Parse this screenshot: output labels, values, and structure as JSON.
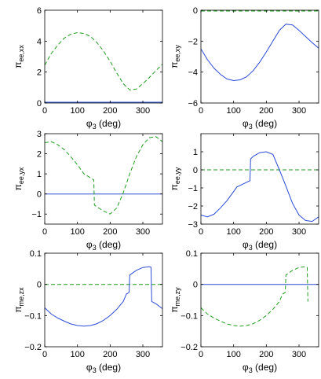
{
  "chart_data": [
    {
      "type": "line",
      "ylabel_main": "π",
      "ylabel_sub": "ee,xx",
      "xlabel_main": "φ",
      "xlabel_sub": "3",
      "xlabel_unit": " (deg)",
      "xlim": [
        0,
        360
      ],
      "ylim": [
        0,
        6
      ],
      "xticks": [
        0,
        100,
        200,
        300
      ],
      "yticks": [
        0,
        2,
        4,
        6
      ],
      "series": [
        {
          "style": "solid",
          "color": "#2b4bd6",
          "x": [
            0,
            360
          ],
          "y": [
            0.05,
            0.05
          ]
        },
        {
          "style": "dashed",
          "color": "#1f9e1f",
          "x": [
            0,
            20,
            40,
            60,
            80,
            100,
            120,
            140,
            160,
            180,
            200,
            220,
            240,
            260,
            280,
            300,
            320,
            340,
            360
          ],
          "y": [
            2.45,
            3.2,
            3.75,
            4.2,
            4.45,
            4.55,
            4.5,
            4.3,
            3.9,
            3.35,
            2.7,
            1.95,
            1.25,
            0.85,
            0.9,
            1.25,
            1.65,
            2.1,
            2.5
          ]
        }
      ]
    },
    {
      "type": "line",
      "ylabel_main": "π",
      "ylabel_sub": "ee,xy",
      "xlabel_main": "φ",
      "xlabel_sub": "3",
      "xlabel_unit": " (deg)",
      "xlim": [
        0,
        360
      ],
      "ylim": [
        -6,
        0
      ],
      "xticks": [
        0,
        100,
        200,
        300
      ],
      "yticks": [
        -6,
        -4,
        -2,
        0
      ],
      "series": [
        {
          "style": "dashed",
          "color": "#1f9e1f",
          "x": [
            0,
            360
          ],
          "y": [
            -0.05,
            -0.05
          ]
        },
        {
          "style": "solid",
          "color": "#2b4bd6",
          "x": [
            0,
            20,
            40,
            60,
            80,
            100,
            120,
            140,
            160,
            180,
            200,
            220,
            240,
            260,
            280,
            300,
            320,
            340,
            360
          ],
          "y": [
            -2.5,
            -3.2,
            -3.75,
            -4.15,
            -4.45,
            -4.55,
            -4.5,
            -4.3,
            -3.9,
            -3.35,
            -2.7,
            -2.0,
            -1.3,
            -0.9,
            -0.95,
            -1.3,
            -1.7,
            -2.1,
            -2.45
          ]
        }
      ]
    },
    {
      "type": "line",
      "ylabel_main": "π",
      "ylabel_sub": "ee,yx",
      "xlabel_main": "φ",
      "xlabel_sub": "3",
      "xlabel_unit": " (deg)",
      "xlim": [
        0,
        360
      ],
      "ylim": [
        -1.5,
        3
      ],
      "xticks": [
        0,
        100,
        200,
        300
      ],
      "yticks": [
        -1,
        0,
        1,
        2,
        3
      ],
      "series": [
        {
          "style": "solid",
          "color": "#2b4bd6",
          "x": [
            0,
            360
          ],
          "y": [
            0,
            0
          ]
        },
        {
          "style": "dashed",
          "color": "#1f9e1f",
          "x": [
            0,
            20,
            40,
            60,
            80,
            100,
            120,
            140,
            150,
            152,
            160,
            180,
            200,
            220,
            240,
            260,
            280,
            300,
            320,
            340,
            360
          ],
          "y": [
            2.55,
            2.6,
            2.45,
            2.2,
            1.85,
            1.45,
            1.0,
            0.8,
            0.7,
            -0.55,
            -0.65,
            -0.85,
            -1.0,
            -0.7,
            0.05,
            1.0,
            1.85,
            2.45,
            2.8,
            2.85,
            2.6
          ]
        }
      ]
    },
    {
      "type": "line",
      "ylabel_main": "π",
      "ylabel_sub": "ee,yy",
      "xlabel_main": "φ",
      "xlabel_sub": "3",
      "xlabel_unit": " (deg)",
      "xlim": [
        0,
        360
      ],
      "ylim": [
        -3,
        2
      ],
      "xticks": [
        0,
        100,
        200,
        300
      ],
      "yticks": [
        -3,
        -2,
        -1,
        0,
        1
      ],
      "series": [
        {
          "style": "dashed",
          "color": "#1f9e1f",
          "x": [
            0,
            360
          ],
          "y": [
            0,
            0
          ]
        },
        {
          "style": "solid",
          "color": "#2b4bd6",
          "x": [
            0,
            20,
            40,
            60,
            80,
            100,
            110,
            150,
            152,
            160,
            180,
            200,
            220,
            240,
            260,
            280,
            300,
            320,
            340,
            360
          ],
          "y": [
            -2.5,
            -2.6,
            -2.45,
            -2.1,
            -1.7,
            -1.2,
            -0.95,
            -0.6,
            0.6,
            0.75,
            0.95,
            1.0,
            0.85,
            0.0,
            -0.9,
            -1.85,
            -2.5,
            -2.8,
            -2.85,
            -2.6
          ]
        }
      ]
    },
    {
      "type": "line",
      "ylabel_main": "π",
      "ylabel_sub": "me,zx",
      "xlabel_main": "φ",
      "xlabel_sub": "3",
      "xlabel_unit": " (deg)",
      "xlim": [
        0,
        360
      ],
      "ylim": [
        -0.2,
        0.1
      ],
      "xticks": [
        0,
        100,
        200,
        300
      ],
      "yticks": [
        -0.2,
        -0.1,
        0,
        0.1
      ],
      "series": [
        {
          "style": "dashed",
          "color": "#1f9e1f",
          "x": [
            0,
            360
          ],
          "y": [
            0,
            0
          ]
        },
        {
          "style": "solid",
          "color": "#2b4bd6",
          "x": [
            0,
            20,
            40,
            60,
            80,
            100,
            120,
            140,
            160,
            180,
            200,
            220,
            240,
            250,
            252,
            258,
            260,
            280,
            300,
            320,
            325,
            327,
            340,
            360
          ],
          "y": [
            -0.075,
            -0.095,
            -0.108,
            -0.118,
            -0.127,
            -0.132,
            -0.134,
            -0.132,
            -0.126,
            -0.115,
            -0.1,
            -0.08,
            -0.055,
            -0.03,
            -0.03,
            -0.025,
            0.03,
            0.045,
            0.054,
            0.057,
            0.055,
            -0.055,
            -0.062,
            -0.078
          ]
        }
      ]
    },
    {
      "type": "line",
      "ylabel_main": "π",
      "ylabel_sub": "me,zy",
      "xlabel_main": "φ",
      "xlabel_sub": "3",
      "xlabel_unit": " (deg)",
      "xlim": [
        0,
        360
      ],
      "ylim": [
        -0.2,
        0.1
      ],
      "xticks": [
        0,
        100,
        200,
        300
      ],
      "yticks": [
        -0.2,
        -0.1,
        0,
        0.1
      ],
      "series": [
        {
          "style": "solid",
          "color": "#2b4bd6",
          "x": [
            0,
            360
          ],
          "y": [
            0,
            0
          ]
        },
        {
          "style": "dashed",
          "color": "#1f9e1f",
          "x": [
            0,
            20,
            40,
            60,
            80,
            100,
            120,
            140,
            160,
            180,
            200,
            220,
            240,
            250,
            252,
            258,
            260,
            280,
            300,
            320,
            325,
            327
          ],
          "y": [
            -0.075,
            -0.095,
            -0.108,
            -0.118,
            -0.127,
            -0.132,
            -0.134,
            -0.132,
            -0.126,
            -0.115,
            -0.1,
            -0.08,
            -0.055,
            -0.03,
            -0.03,
            -0.025,
            0.03,
            0.045,
            0.054,
            0.057,
            0.055,
            -0.055
          ]
        }
      ]
    }
  ]
}
